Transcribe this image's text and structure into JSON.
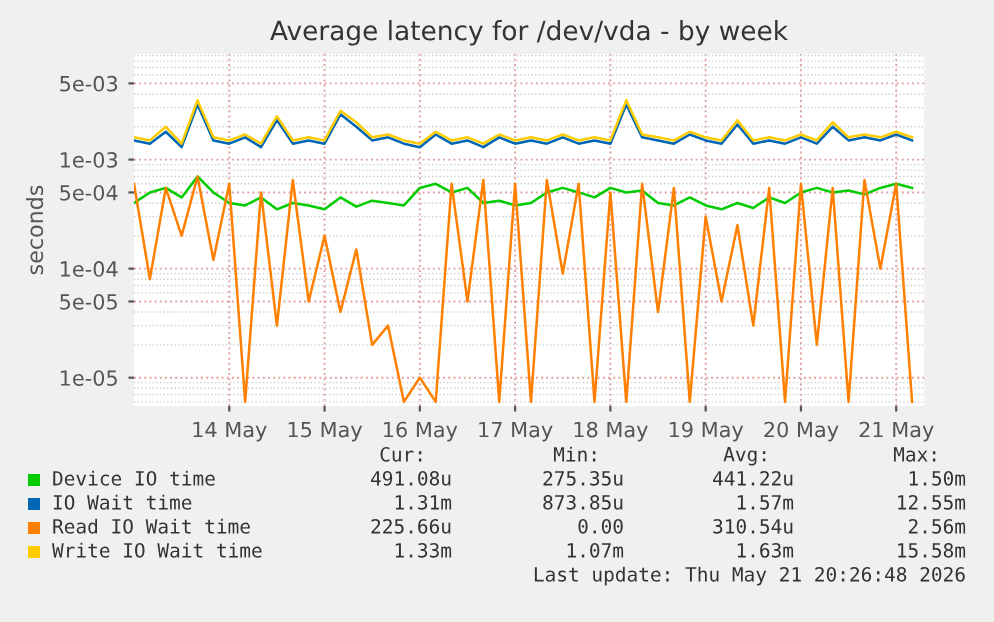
{
  "chart_data": {
    "type": "line",
    "title": "Average latency for /dev/vda - by week",
    "ylabel": "seconds",
    "x": [
      "2026-05-13T00:00",
      "2026-05-13T04:00",
      "2026-05-13T08:00",
      "2026-05-13T12:00",
      "2026-05-13T16:00",
      "2026-05-13T20:00",
      "2026-05-14T00:00",
      "2026-05-14T04:00",
      "2026-05-14T08:00",
      "2026-05-14T12:00",
      "2026-05-14T16:00",
      "2026-05-14T20:00",
      "2026-05-15T00:00",
      "2026-05-15T04:00",
      "2026-05-15T08:00",
      "2026-05-15T12:00",
      "2026-05-15T16:00",
      "2026-05-15T20:00",
      "2026-05-16T00:00",
      "2026-05-16T04:00",
      "2026-05-16T08:00",
      "2026-05-16T12:00",
      "2026-05-16T16:00",
      "2026-05-16T20:00",
      "2026-05-17T00:00",
      "2026-05-17T04:00",
      "2026-05-17T08:00",
      "2026-05-17T12:00",
      "2026-05-17T16:00",
      "2026-05-17T20:00",
      "2026-05-18T00:00",
      "2026-05-18T04:00",
      "2026-05-18T08:00",
      "2026-05-18T12:00",
      "2026-05-18T16:00",
      "2026-05-18T20:00",
      "2026-05-19T00:00",
      "2026-05-19T04:00",
      "2026-05-19T08:00",
      "2026-05-19T12:00",
      "2026-05-19T16:00",
      "2026-05-19T20:00",
      "2026-05-20T00:00",
      "2026-05-20T04:00",
      "2026-05-20T08:00",
      "2026-05-20T12:00",
      "2026-05-20T16:00",
      "2026-05-20T20:00",
      "2026-05-21T00:00",
      "2026-05-21T04:00"
    ],
    "series": [
      {
        "name": "Device IO time",
        "color": "#00cc00",
        "values": [
          0.0004,
          0.0005,
          0.00055,
          0.00045,
          0.0007,
          0.0005,
          0.0004,
          0.00038,
          0.00045,
          0.00035,
          0.0004,
          0.00038,
          0.00035,
          0.00045,
          0.00037,
          0.00042,
          0.0004,
          0.00038,
          0.00055,
          0.0006,
          0.0005,
          0.00055,
          0.0004,
          0.00042,
          0.00038,
          0.0004,
          0.0005,
          0.00055,
          0.0005,
          0.00045,
          0.00055,
          0.0005,
          0.00052,
          0.0004,
          0.00038,
          0.00045,
          0.00038,
          0.00035,
          0.0004,
          0.00036,
          0.00045,
          0.0004,
          0.0005,
          0.00055,
          0.0005,
          0.00052,
          0.00048,
          0.00055,
          0.0006,
          0.00055
        ]
      },
      {
        "name": "IO Wait time",
        "color": "#0066b3",
        "values": [
          0.0015,
          0.0014,
          0.0018,
          0.0013,
          0.0032,
          0.0015,
          0.0014,
          0.0016,
          0.0013,
          0.0023,
          0.0014,
          0.0015,
          0.0014,
          0.0026,
          0.002,
          0.0015,
          0.0016,
          0.0014,
          0.0013,
          0.0017,
          0.0014,
          0.0015,
          0.0013,
          0.0016,
          0.0014,
          0.0015,
          0.0014,
          0.0016,
          0.0014,
          0.0015,
          0.0014,
          0.0032,
          0.0016,
          0.0015,
          0.0014,
          0.0017,
          0.0015,
          0.0014,
          0.0021,
          0.0014,
          0.0015,
          0.0014,
          0.0016,
          0.0014,
          0.002,
          0.0015,
          0.0016,
          0.0015,
          0.0017,
          0.0015
        ]
      },
      {
        "name": "Read IO Wait time",
        "color": "#ff8000",
        "values": [
          0.0006,
          8e-05,
          0.00055,
          0.0002,
          0.0007,
          0.00012,
          0.0006,
          6e-06,
          0.0005,
          3e-05,
          0.00065,
          5e-05,
          0.0002,
          4e-05,
          0.00015,
          2e-05,
          3e-05,
          6e-06,
          1e-05,
          6e-06,
          0.0006,
          5e-05,
          0.00065,
          6e-06,
          0.0006,
          6e-06,
          0.00065,
          9e-05,
          0.0006,
          6e-06,
          0.0005,
          6e-06,
          0.0006,
          4e-05,
          0.00055,
          6e-06,
          0.0003,
          5e-05,
          0.00025,
          3e-05,
          0.00055,
          6e-06,
          0.0006,
          2e-05,
          0.00055,
          6e-06,
          0.00065,
          0.0001,
          0.0006,
          6e-06
        ]
      },
      {
        "name": "Write IO Wait time",
        "color": "#ffcc00",
        "values": [
          0.0016,
          0.0015,
          0.002,
          0.0014,
          0.0035,
          0.0016,
          0.0015,
          0.0017,
          0.0014,
          0.0025,
          0.0015,
          0.0016,
          0.0015,
          0.0028,
          0.0022,
          0.0016,
          0.0017,
          0.0015,
          0.0014,
          0.0018,
          0.0015,
          0.0016,
          0.0014,
          0.0017,
          0.0015,
          0.0016,
          0.0015,
          0.0017,
          0.0015,
          0.0016,
          0.0015,
          0.0035,
          0.0017,
          0.0016,
          0.0015,
          0.0018,
          0.0016,
          0.0015,
          0.0023,
          0.0015,
          0.0016,
          0.0015,
          0.0017,
          0.0015,
          0.0022,
          0.0016,
          0.0017,
          0.0016,
          0.0018,
          0.0016
        ]
      }
    ],
    "log": "y",
    "ylim": [
      5.5e-06,
      0.0093
    ],
    "yticks": [
      {
        "value": 1e-05,
        "label": "1e-05"
      },
      {
        "value": 5e-05,
        "label": "5e-05"
      },
      {
        "value": 0.0001,
        "label": "1e-04"
      },
      {
        "value": 0.0005,
        "label": "5e-04"
      },
      {
        "value": 0.001,
        "label": "1e-03"
      },
      {
        "value": 0.005,
        "label": "5e-03"
      }
    ],
    "xlim": [
      "2026-05-13T00:00",
      "2026-05-21T07:00"
    ],
    "xticks": [
      {
        "value": "2026-05-14",
        "label": "14 May"
      },
      {
        "value": "2026-05-15",
        "label": "15 May"
      },
      {
        "value": "2026-05-16",
        "label": "16 May"
      },
      {
        "value": "2026-05-17",
        "label": "17 May"
      },
      {
        "value": "2026-05-18",
        "label": "18 May"
      },
      {
        "value": "2026-05-19",
        "label": "19 May"
      },
      {
        "value": "2026-05-20",
        "label": "20 May"
      },
      {
        "value": "2026-05-21",
        "label": "21 May"
      }
    ],
    "grid": true,
    "legend": "bottom",
    "marker": "none",
    "line_style": "solid",
    "annotations": [
      "Cur:",
      "Min:",
      "Avg:",
      "Max:",
      "491.08u",
      "275.35u",
      "441.22u",
      "1.50m",
      "1.31m",
      "873.85u",
      "1.57m",
      "12.55m",
      "225.66u",
      "0.00",
      "310.54u",
      "2.56m",
      "1.33m",
      "1.07m",
      "1.63m",
      "15.58m",
      "Last update: Thu May 21 20:26:48 2026"
    ]
  }
}
